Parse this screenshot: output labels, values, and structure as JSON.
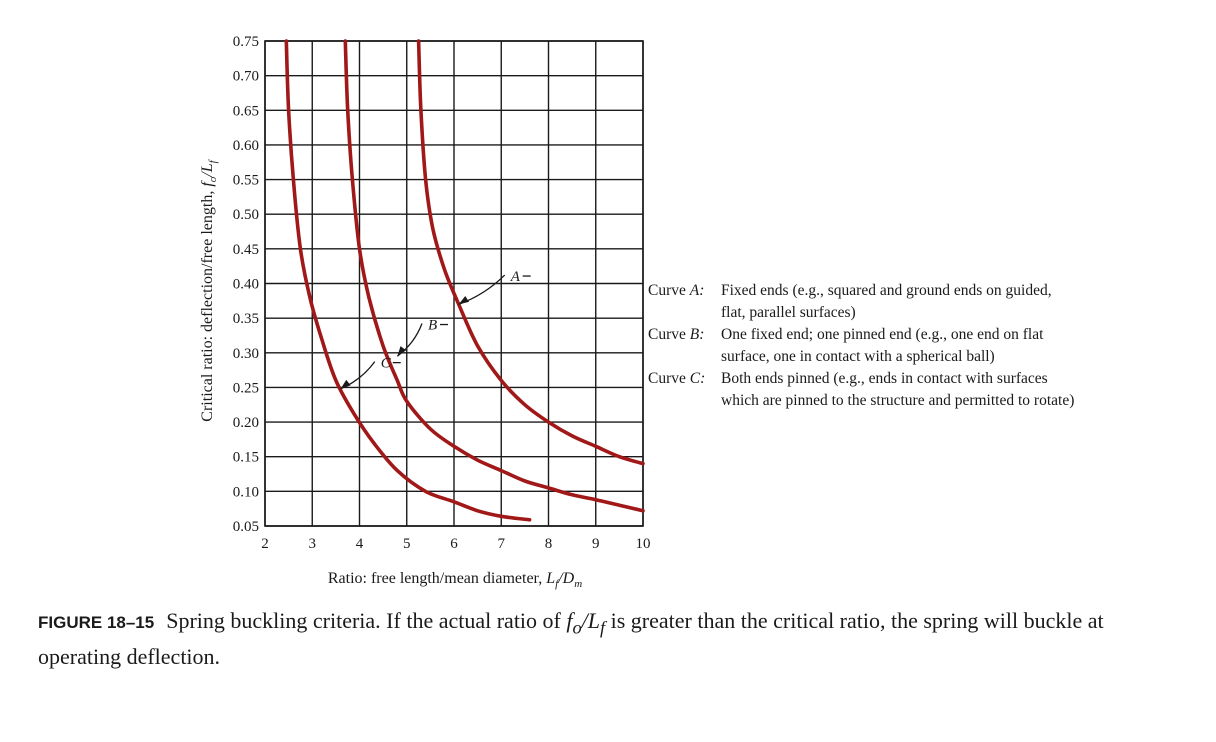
{
  "chart_data": {
    "type": "line",
    "xlabel_main": "Ratio: free length/mean diameter, ",
    "xlabel_math": "L",
    "xlabel_sub1": "f",
    "xlabel_slash": "/D",
    "xlabel_sub2": "m",
    "ylabel_main": "Critical ratio: deflection/free length, ",
    "ylabel_math": "f",
    "ylabel_sub1": "o",
    "ylabel_slash": "/L",
    "ylabel_sub2": "f",
    "xlim": [
      2,
      10
    ],
    "ylim": [
      0.05,
      0.75
    ],
    "x_ticks": [
      "2",
      "3",
      "4",
      "5",
      "6",
      "7",
      "8",
      "9",
      "10"
    ],
    "y_ticks": [
      "0.05",
      "0.10",
      "0.15",
      "0.20",
      "0.25",
      "0.30",
      "0.35",
      "0.40",
      "0.45",
      "0.50",
      "0.55",
      "0.60",
      "0.65",
      "0.70",
      "0.75"
    ],
    "grid": true,
    "series": [
      {
        "name": "A",
        "color": "#a01818",
        "points": [
          [
            5.25,
            0.75
          ],
          [
            5.3,
            0.65
          ],
          [
            5.4,
            0.55
          ],
          [
            5.55,
            0.48
          ],
          [
            5.8,
            0.42
          ],
          [
            6.1,
            0.37
          ],
          [
            6.5,
            0.31
          ],
          [
            7.0,
            0.26
          ],
          [
            7.5,
            0.225
          ],
          [
            8.0,
            0.2
          ],
          [
            8.5,
            0.18
          ],
          [
            9.0,
            0.165
          ],
          [
            9.5,
            0.15
          ],
          [
            10.0,
            0.14
          ]
        ]
      },
      {
        "name": "B",
        "color": "#a01818",
        "points": [
          [
            3.7,
            0.75
          ],
          [
            3.75,
            0.65
          ],
          [
            3.85,
            0.55
          ],
          [
            4.0,
            0.45
          ],
          [
            4.2,
            0.38
          ],
          [
            4.5,
            0.31
          ],
          [
            4.8,
            0.26
          ],
          [
            5.0,
            0.23
          ],
          [
            5.5,
            0.19
          ],
          [
            6.0,
            0.165
          ],
          [
            6.5,
            0.145
          ],
          [
            7.0,
            0.13
          ],
          [
            7.5,
            0.115
          ],
          [
            8.0,
            0.105
          ],
          [
            8.5,
            0.095
          ],
          [
            9.0,
            0.088
          ],
          [
            9.5,
            0.08
          ],
          [
            10.0,
            0.072
          ]
        ]
      },
      {
        "name": "C",
        "color": "#a01818",
        "points": [
          [
            2.45,
            0.75
          ],
          [
            2.5,
            0.65
          ],
          [
            2.6,
            0.55
          ],
          [
            2.75,
            0.45
          ],
          [
            2.95,
            0.38
          ],
          [
            3.2,
            0.32
          ],
          [
            3.5,
            0.26
          ],
          [
            3.9,
            0.21
          ],
          [
            4.3,
            0.17
          ],
          [
            4.8,
            0.13
          ],
          [
            5.4,
            0.1
          ],
          [
            6.0,
            0.085
          ],
          [
            6.5,
            0.072
          ],
          [
            7.0,
            0.064
          ],
          [
            7.6,
            0.059
          ]
        ]
      }
    ],
    "annotations": [
      {
        "label": "A",
        "tip": [
          6.1,
          0.37
        ],
        "text_at": [
          7.2,
          0.405
        ]
      },
      {
        "label": "B",
        "tip": [
          4.8,
          0.295
        ],
        "text_at": [
          5.45,
          0.335
        ]
      },
      {
        "label": "C",
        "tip": [
          3.6,
          0.248
        ],
        "text_at": [
          4.45,
          0.28
        ]
      }
    ]
  },
  "legend": {
    "entries": [
      {
        "prefix": "Curve ",
        "key": "A",
        "text": "Fixed ends (e.g., squared and ground ends on guided, flat, parallel surfaces)"
      },
      {
        "prefix": "Curve ",
        "key": "B",
        "text": "One fixed end; one pinned end (e.g., one end on flat surface, one in contact with a spherical ball)"
      },
      {
        "prefix": "Curve ",
        "key": "C",
        "text": "Both ends pinned (e.g., ends in contact with surfaces which are pinned to the structure and permitted to rotate)"
      }
    ]
  },
  "caption": {
    "number": "FIGURE 18–15",
    "text_before": "Spring buckling criteria. If the actual ratio of ",
    "math_f": "f",
    "math_sub1": "o",
    "math_slash": "/L",
    "math_sub2": "f",
    "text_after": " is greater than the critical ratio, the spring will buckle at operating deflection."
  }
}
